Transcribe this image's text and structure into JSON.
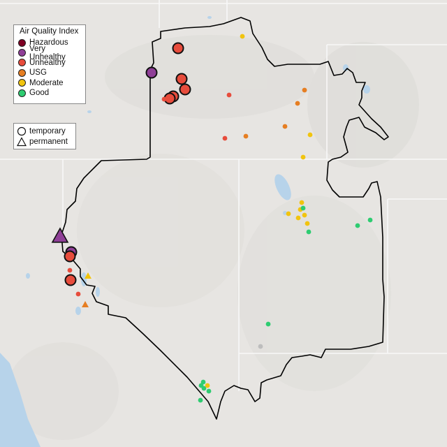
{
  "legend": {
    "title": "Air Quality Index",
    "categories": [
      {
        "label": "Hazardous",
        "color": "#7e0023"
      },
      {
        "label": "Very Unhealthy",
        "color": "#8f3f97"
      },
      {
        "label": "Unhealthy",
        "color": "#e74c3c"
      },
      {
        "label": "USG",
        "color": "#e67e22"
      },
      {
        "label": "Moderate",
        "color": "#f1c40f"
      },
      {
        "label": "Good",
        "color": "#2ecc71"
      }
    ],
    "shapes": [
      {
        "label": "temporary",
        "icon": "circle-icon"
      },
      {
        "label": "permanent",
        "icon": "triangle-icon"
      }
    ]
  },
  "monitors": [
    {
      "category": "Unhealthy",
      "type": "temporary",
      "size": "large"
    },
    {
      "category": "Very Unhealthy",
      "type": "temporary",
      "size": "large"
    },
    {
      "category": "Unhealthy",
      "type": "temporary",
      "size": "large"
    },
    {
      "category": "Unhealthy",
      "type": "temporary",
      "size": "large"
    },
    {
      "category": "Unhealthy",
      "type": "temporary",
      "size": "large"
    },
    {
      "category": "Unhealthy",
      "type": "temporary",
      "size": "large"
    },
    {
      "category": "Unhealthy",
      "type": "temporary",
      "size": "small"
    },
    {
      "category": "Unhealthy",
      "type": "temporary",
      "size": "small"
    },
    {
      "category": "Unhealthy",
      "type": "temporary",
      "size": "small"
    },
    {
      "category": "Moderate",
      "type": "temporary",
      "size": "small"
    },
    {
      "category": "USG",
      "type": "temporary",
      "size": "small"
    },
    {
      "category": "USG",
      "type": "temporary",
      "size": "small"
    },
    {
      "category": "USG",
      "type": "temporary",
      "size": "small"
    },
    {
      "category": "USG",
      "type": "temporary",
      "size": "small"
    },
    {
      "category": "Moderate",
      "type": "temporary",
      "size": "small"
    },
    {
      "category": "Moderate",
      "type": "temporary",
      "size": "small"
    },
    {
      "category": "Moderate",
      "type": "temporary",
      "size": "small"
    },
    {
      "category": "Moderate",
      "type": "temporary",
      "size": "small"
    },
    {
      "category": "Moderate",
      "type": "temporary",
      "size": "small"
    },
    {
      "category": "Moderate",
      "type": "temporary",
      "size": "small"
    },
    {
      "category": "Moderate",
      "type": "temporary",
      "size": "small"
    },
    {
      "category": "Moderate",
      "type": "temporary",
      "size": "small"
    },
    {
      "category": "Good",
      "type": "temporary",
      "size": "small"
    },
    {
      "category": "Good",
      "type": "temporary",
      "size": "small"
    },
    {
      "category": "Good",
      "type": "temporary",
      "size": "small"
    },
    {
      "category": "Good",
      "type": "temporary",
      "size": "small"
    },
    {
      "category": "Good",
      "type": "temporary",
      "size": "small"
    },
    {
      "category": "Very Unhealthy",
      "type": "permanent",
      "size": "large"
    },
    {
      "category": "Very Unhealthy",
      "type": "temporary",
      "size": "large"
    },
    {
      "category": "Unhealthy",
      "type": "temporary",
      "size": "large"
    },
    {
      "category": "Unhealthy",
      "type": "temporary",
      "size": "large"
    },
    {
      "category": "Unhealthy",
      "type": "temporary",
      "size": "small"
    },
    {
      "category": "Unhealthy",
      "type": "temporary",
      "size": "small"
    },
    {
      "category": "Moderate",
      "type": "permanent",
      "size": "small"
    },
    {
      "category": "USG",
      "type": "permanent",
      "size": "small"
    },
    {
      "category": "Good",
      "type": "temporary",
      "size": "small"
    },
    {
      "category": "Good",
      "type": "temporary",
      "size": "small"
    },
    {
      "category": "Good",
      "type": "temporary",
      "size": "small"
    },
    {
      "category": "Good",
      "type": "temporary",
      "size": "small"
    },
    {
      "category": "Good",
      "type": "temporary",
      "size": "small"
    },
    {
      "category": "Moderate",
      "type": "temporary",
      "size": "small"
    }
  ],
  "colors": {
    "land": "#e7e5e2",
    "water": "#b7d3ea",
    "state_lines": "#f7f7f7",
    "region_outline": "#000000",
    "no_data": "#bdbdbd"
  }
}
